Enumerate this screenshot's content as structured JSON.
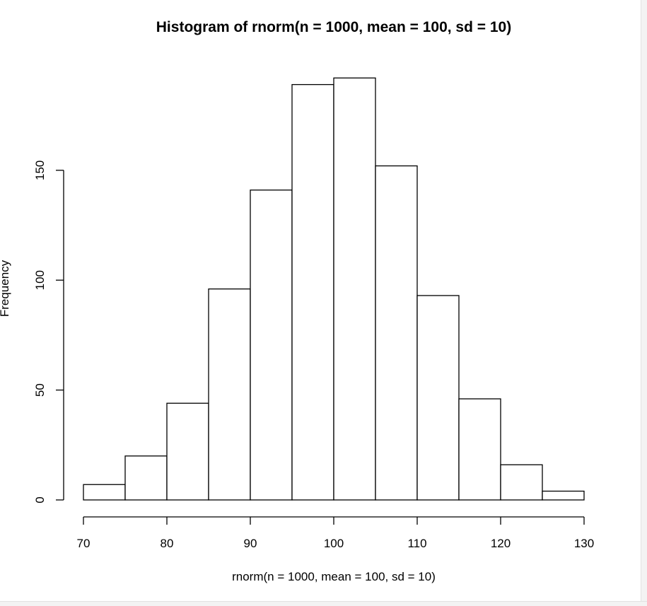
{
  "chart_data": {
    "type": "bar",
    "title": "Histogram of rnorm(n = 1000, mean = 100, sd = 10)",
    "xlabel": "rnorm(n = 1000, mean = 100, sd = 10)",
    "ylabel": "Frequency",
    "bin_edges": [
      70,
      75,
      80,
      85,
      90,
      95,
      100,
      105,
      110,
      115,
      120,
      125,
      130
    ],
    "values": [
      7,
      20,
      44,
      96,
      141,
      189,
      192,
      152,
      93,
      46,
      16,
      4
    ],
    "xlim": [
      70,
      130
    ],
    "ylim": [
      0,
      192
    ],
    "x_ticks": [
      70,
      80,
      90,
      100,
      110,
      120,
      130
    ],
    "x_tick_labels": [
      "70",
      "80",
      "90",
      "100",
      "110",
      "120",
      "130"
    ],
    "y_ticks": [
      0,
      50,
      100,
      150
    ],
    "y_tick_labels": [
      "0",
      "50",
      "100",
      "150"
    ],
    "grid": false,
    "bar_fill": "#ffffff",
    "bar_stroke": "#000000"
  }
}
